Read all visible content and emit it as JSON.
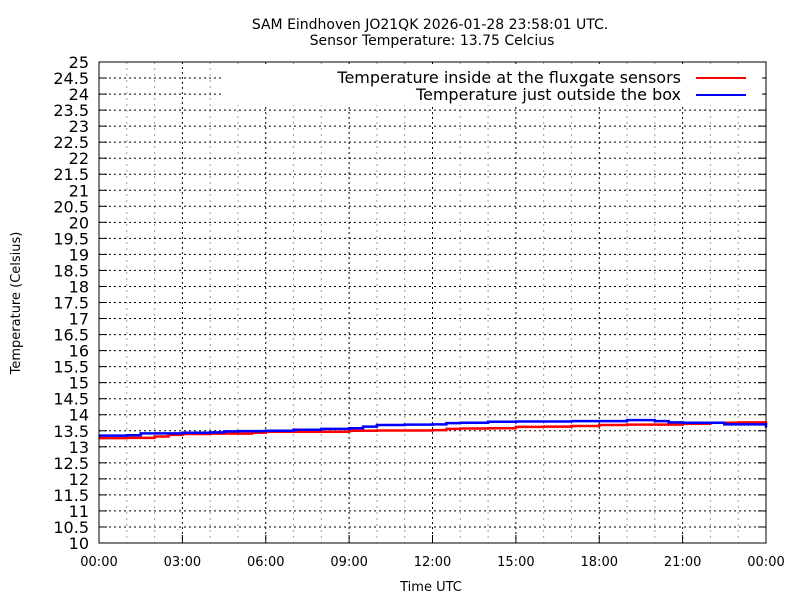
{
  "chart_data": {
    "type": "line",
    "title": "SAM Eindhoven JO21QK 2026-01-28 23:58:01 UTC.",
    "subtitle": "Sensor Temperature: 13.75 Celcius",
    "xlabel": "Time UTC",
    "ylabel": "Temperature (Celsius)",
    "xlim": [
      "00:00",
      "24:00"
    ],
    "ylim": [
      10,
      25
    ],
    "x_ticks": [
      "00:00",
      "03:00",
      "06:00",
      "09:00",
      "12:00",
      "15:00",
      "18:00",
      "21:00",
      "00:00"
    ],
    "y_ticks": [
      "10",
      "10.5",
      "11",
      "11.5",
      "12",
      "12.5",
      "13",
      "13.5",
      "14",
      "14.5",
      "15",
      "15.5",
      "16",
      "16.5",
      "17",
      "17.5",
      "18",
      "18.5",
      "19",
      "19.5",
      "20",
      "20.5",
      "21",
      "21.5",
      "22",
      "22.5",
      "23",
      "23.5",
      "24",
      "24.5",
      "25"
    ],
    "grid": true,
    "legend_position": "top-right",
    "series": [
      {
        "name": "Temperature inside at the fluxgate sensors",
        "color": "#ff0000",
        "x": [
          "00:00",
          "01:00",
          "02:00",
          "02:30",
          "03:00",
          "04:00",
          "05:00",
          "05:30",
          "06:00",
          "07:00",
          "08:00",
          "09:00",
          "10:00",
          "11:00",
          "12:00",
          "12:30",
          "13:00",
          "14:00",
          "15:00",
          "16:00",
          "17:00",
          "18:00",
          "19:00",
          "20:00",
          "21:00",
          "22:00",
          "23:00",
          "24:00"
        ],
        "y": [
          13.27,
          13.28,
          13.32,
          13.37,
          13.4,
          13.41,
          13.41,
          13.44,
          13.47,
          13.47,
          13.47,
          13.5,
          13.51,
          13.51,
          13.52,
          13.56,
          13.57,
          13.58,
          13.62,
          13.63,
          13.65,
          13.68,
          13.69,
          13.69,
          13.72,
          13.75,
          13.76,
          13.78
        ]
      },
      {
        "name": "Temperature just outside the box",
        "color": "#0000ff",
        "x": [
          "00:00",
          "01:00",
          "01:30",
          "02:00",
          "03:00",
          "04:00",
          "04:30",
          "05:00",
          "06:00",
          "07:00",
          "08:00",
          "09:00",
          "09:30",
          "10:00",
          "11:00",
          "12:00",
          "12:30",
          "13:00",
          "14:00",
          "15:00",
          "16:00",
          "17:00",
          "18:00",
          "19:00",
          "20:00",
          "20:30",
          "21:00",
          "22:00",
          "22:30",
          "23:00",
          "23:50",
          "24:00"
        ],
        "y": [
          13.35,
          13.36,
          13.42,
          13.42,
          13.44,
          13.45,
          13.48,
          13.49,
          13.5,
          13.53,
          13.56,
          13.58,
          13.63,
          13.68,
          13.69,
          13.7,
          13.74,
          13.75,
          13.78,
          13.79,
          13.79,
          13.8,
          13.8,
          13.83,
          13.8,
          13.76,
          13.75,
          13.75,
          13.7,
          13.7,
          13.7,
          13.6
        ]
      }
    ]
  }
}
